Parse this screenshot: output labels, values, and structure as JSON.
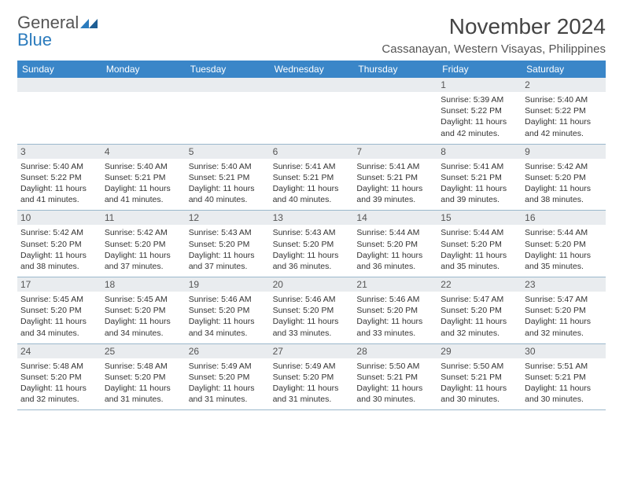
{
  "brand": {
    "name1": "General",
    "name2": "Blue"
  },
  "title": "November 2024",
  "location": "Cassanayan, Western Visayas, Philippines",
  "colors": {
    "header_bg": "#3a86c8",
    "header_text": "#ffffff",
    "band_bg": "#e9ecef",
    "rule": "#9bb8cc",
    "title_color": "#444444",
    "body_text": "#333333",
    "brand_gray": "#555555",
    "brand_blue": "#2b7bbd"
  },
  "dow": [
    "Sunday",
    "Monday",
    "Tuesday",
    "Wednesday",
    "Thursday",
    "Friday",
    "Saturday"
  ],
  "weeks": [
    [
      {
        "n": "",
        "lines": []
      },
      {
        "n": "",
        "lines": []
      },
      {
        "n": "",
        "lines": []
      },
      {
        "n": "",
        "lines": []
      },
      {
        "n": "",
        "lines": []
      },
      {
        "n": "1",
        "lines": [
          "Sunrise: 5:39 AM",
          "Sunset: 5:22 PM",
          "Daylight: 11 hours",
          "and 42 minutes."
        ]
      },
      {
        "n": "2",
        "lines": [
          "Sunrise: 5:40 AM",
          "Sunset: 5:22 PM",
          "Daylight: 11 hours",
          "and 42 minutes."
        ]
      }
    ],
    [
      {
        "n": "3",
        "lines": [
          "Sunrise: 5:40 AM",
          "Sunset: 5:22 PM",
          "Daylight: 11 hours",
          "and 41 minutes."
        ]
      },
      {
        "n": "4",
        "lines": [
          "Sunrise: 5:40 AM",
          "Sunset: 5:21 PM",
          "Daylight: 11 hours",
          "and 41 minutes."
        ]
      },
      {
        "n": "5",
        "lines": [
          "Sunrise: 5:40 AM",
          "Sunset: 5:21 PM",
          "Daylight: 11 hours",
          "and 40 minutes."
        ]
      },
      {
        "n": "6",
        "lines": [
          "Sunrise: 5:41 AM",
          "Sunset: 5:21 PM",
          "Daylight: 11 hours",
          "and 40 minutes."
        ]
      },
      {
        "n": "7",
        "lines": [
          "Sunrise: 5:41 AM",
          "Sunset: 5:21 PM",
          "Daylight: 11 hours",
          "and 39 minutes."
        ]
      },
      {
        "n": "8",
        "lines": [
          "Sunrise: 5:41 AM",
          "Sunset: 5:21 PM",
          "Daylight: 11 hours",
          "and 39 minutes."
        ]
      },
      {
        "n": "9",
        "lines": [
          "Sunrise: 5:42 AM",
          "Sunset: 5:20 PM",
          "Daylight: 11 hours",
          "and 38 minutes."
        ]
      }
    ],
    [
      {
        "n": "10",
        "lines": [
          "Sunrise: 5:42 AM",
          "Sunset: 5:20 PM",
          "Daylight: 11 hours",
          "and 38 minutes."
        ]
      },
      {
        "n": "11",
        "lines": [
          "Sunrise: 5:42 AM",
          "Sunset: 5:20 PM",
          "Daylight: 11 hours",
          "and 37 minutes."
        ]
      },
      {
        "n": "12",
        "lines": [
          "Sunrise: 5:43 AM",
          "Sunset: 5:20 PM",
          "Daylight: 11 hours",
          "and 37 minutes."
        ]
      },
      {
        "n": "13",
        "lines": [
          "Sunrise: 5:43 AM",
          "Sunset: 5:20 PM",
          "Daylight: 11 hours",
          "and 36 minutes."
        ]
      },
      {
        "n": "14",
        "lines": [
          "Sunrise: 5:44 AM",
          "Sunset: 5:20 PM",
          "Daylight: 11 hours",
          "and 36 minutes."
        ]
      },
      {
        "n": "15",
        "lines": [
          "Sunrise: 5:44 AM",
          "Sunset: 5:20 PM",
          "Daylight: 11 hours",
          "and 35 minutes."
        ]
      },
      {
        "n": "16",
        "lines": [
          "Sunrise: 5:44 AM",
          "Sunset: 5:20 PM",
          "Daylight: 11 hours",
          "and 35 minutes."
        ]
      }
    ],
    [
      {
        "n": "17",
        "lines": [
          "Sunrise: 5:45 AM",
          "Sunset: 5:20 PM",
          "Daylight: 11 hours",
          "and 34 minutes."
        ]
      },
      {
        "n": "18",
        "lines": [
          "Sunrise: 5:45 AM",
          "Sunset: 5:20 PM",
          "Daylight: 11 hours",
          "and 34 minutes."
        ]
      },
      {
        "n": "19",
        "lines": [
          "Sunrise: 5:46 AM",
          "Sunset: 5:20 PM",
          "Daylight: 11 hours",
          "and 34 minutes."
        ]
      },
      {
        "n": "20",
        "lines": [
          "Sunrise: 5:46 AM",
          "Sunset: 5:20 PM",
          "Daylight: 11 hours",
          "and 33 minutes."
        ]
      },
      {
        "n": "21",
        "lines": [
          "Sunrise: 5:46 AM",
          "Sunset: 5:20 PM",
          "Daylight: 11 hours",
          "and 33 minutes."
        ]
      },
      {
        "n": "22",
        "lines": [
          "Sunrise: 5:47 AM",
          "Sunset: 5:20 PM",
          "Daylight: 11 hours",
          "and 32 minutes."
        ]
      },
      {
        "n": "23",
        "lines": [
          "Sunrise: 5:47 AM",
          "Sunset: 5:20 PM",
          "Daylight: 11 hours",
          "and 32 minutes."
        ]
      }
    ],
    [
      {
        "n": "24",
        "lines": [
          "Sunrise: 5:48 AM",
          "Sunset: 5:20 PM",
          "Daylight: 11 hours",
          "and 32 minutes."
        ]
      },
      {
        "n": "25",
        "lines": [
          "Sunrise: 5:48 AM",
          "Sunset: 5:20 PM",
          "Daylight: 11 hours",
          "and 31 minutes."
        ]
      },
      {
        "n": "26",
        "lines": [
          "Sunrise: 5:49 AM",
          "Sunset: 5:20 PM",
          "Daylight: 11 hours",
          "and 31 minutes."
        ]
      },
      {
        "n": "27",
        "lines": [
          "Sunrise: 5:49 AM",
          "Sunset: 5:20 PM",
          "Daylight: 11 hours",
          "and 31 minutes."
        ]
      },
      {
        "n": "28",
        "lines": [
          "Sunrise: 5:50 AM",
          "Sunset: 5:21 PM",
          "Daylight: 11 hours",
          "and 30 minutes."
        ]
      },
      {
        "n": "29",
        "lines": [
          "Sunrise: 5:50 AM",
          "Sunset: 5:21 PM",
          "Daylight: 11 hours",
          "and 30 minutes."
        ]
      },
      {
        "n": "30",
        "lines": [
          "Sunrise: 5:51 AM",
          "Sunset: 5:21 PM",
          "Daylight: 11 hours",
          "and 30 minutes."
        ]
      }
    ]
  ]
}
